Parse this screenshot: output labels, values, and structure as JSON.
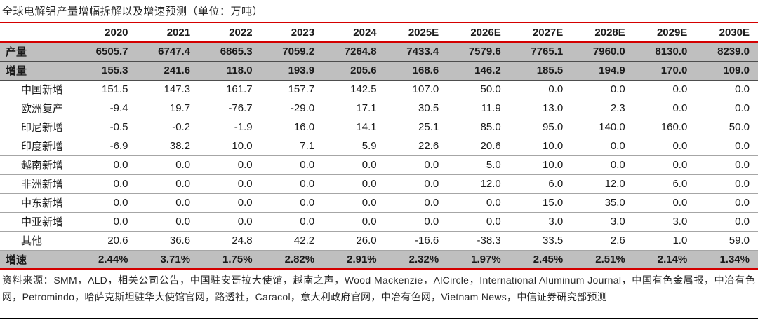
{
  "title": "全球电解铝产量增幅拆解以及增速预测（单位：万吨）",
  "table": {
    "years": [
      "2020",
      "2021",
      "2022",
      "2023",
      "2024",
      "2025E",
      "2026E",
      "2027E",
      "2028E",
      "2029E",
      "2030E"
    ],
    "rows": [
      {
        "label": "产量",
        "emphasis": true,
        "values": [
          "6505.7",
          "6747.4",
          "6865.3",
          "7059.2",
          "7264.8",
          "7433.4",
          "7579.6",
          "7765.1",
          "7960.0",
          "8130.0",
          "8239.0"
        ]
      },
      {
        "label": "增量",
        "emphasis": true,
        "values": [
          "155.3",
          "241.6",
          "118.0",
          "193.9",
          "205.6",
          "168.6",
          "146.2",
          "185.5",
          "194.9",
          "170.0",
          "109.0"
        ]
      },
      {
        "label": "中国新增",
        "emphasis": false,
        "values": [
          "151.5",
          "147.3",
          "161.7",
          "157.7",
          "142.5",
          "107.0",
          "50.0",
          "0.0",
          "0.0",
          "0.0",
          "0.0"
        ]
      },
      {
        "label": "欧洲复产",
        "emphasis": false,
        "values": [
          "-9.4",
          "19.7",
          "-76.7",
          "-29.0",
          "17.1",
          "30.5",
          "11.9",
          "13.0",
          "2.3",
          "0.0",
          "0.0"
        ]
      },
      {
        "label": "印尼新增",
        "emphasis": false,
        "values": [
          "-0.5",
          "-0.2",
          "-1.9",
          "16.0",
          "14.1",
          "25.1",
          "85.0",
          "95.0",
          "140.0",
          "160.0",
          "50.0"
        ]
      },
      {
        "label": "印度新增",
        "emphasis": false,
        "values": [
          "-6.9",
          "38.2",
          "10.0",
          "7.1",
          "5.9",
          "22.6",
          "20.6",
          "10.0",
          "0.0",
          "0.0",
          "0.0"
        ]
      },
      {
        "label": "越南新增",
        "emphasis": false,
        "values": [
          "0.0",
          "0.0",
          "0.0",
          "0.0",
          "0.0",
          "0.0",
          "5.0",
          "10.0",
          "0.0",
          "0.0",
          "0.0"
        ]
      },
      {
        "label": "非洲新增",
        "emphasis": false,
        "values": [
          "0.0",
          "0.0",
          "0.0",
          "0.0",
          "0.0",
          "0.0",
          "12.0",
          "6.0",
          "12.0",
          "6.0",
          "0.0"
        ]
      },
      {
        "label": "中东新增",
        "emphasis": false,
        "values": [
          "0.0",
          "0.0",
          "0.0",
          "0.0",
          "0.0",
          "0.0",
          "0.0",
          "15.0",
          "35.0",
          "0.0",
          "0.0"
        ]
      },
      {
        "label": "中亚新增",
        "emphasis": false,
        "values": [
          "0.0",
          "0.0",
          "0.0",
          "0.0",
          "0.0",
          "0.0",
          "0.0",
          "3.0",
          "3.0",
          "3.0",
          "0.0"
        ]
      },
      {
        "label": "其他",
        "emphasis": false,
        "values": [
          "20.6",
          "36.6",
          "24.8",
          "42.2",
          "26.0",
          "-16.6",
          "-38.3",
          "33.5",
          "2.6",
          "1.0",
          "59.0"
        ]
      },
      {
        "label": "增速",
        "emphasis": true,
        "values": [
          "2.44%",
          "3.71%",
          "1.75%",
          "2.82%",
          "2.91%",
          "2.32%",
          "1.97%",
          "2.45%",
          "2.51%",
          "2.14%",
          "1.34%"
        ]
      }
    ]
  },
  "footer": {
    "source_text": "资料来源：SMM，ALD，相关公司公告，中国驻安哥拉大使馆，越南之声，Wood Mackenzie，AlCircle，International Aluminum Journal，中国有色金属报，中冶有色网，Petromindo，哈萨克斯坦驻华大使馆官网，路透社，Caracol，意大利政府官网，中冶有色网，Vietnam News，中信证券研究部预测"
  },
  "colors": {
    "accent_red": "#d40000",
    "band_gray": "#bfbfbf",
    "rule_dark": "#4d4d4d",
    "rule_light": "#a6a6a6"
  },
  "chart_data": {
    "type": "table",
    "title": "全球电解铝产量增幅拆解以及增速预测（单位：万吨）",
    "categories": [
      "2020",
      "2021",
      "2022",
      "2023",
      "2024",
      "2025E",
      "2026E",
      "2027E",
      "2028E",
      "2029E",
      "2030E"
    ],
    "series": [
      {
        "name": "产量",
        "values": [
          6505.7,
          6747.4,
          6865.3,
          7059.2,
          7264.8,
          7433.4,
          7579.6,
          7765.1,
          7960.0,
          8130.0,
          8239.0
        ]
      },
      {
        "name": "增量",
        "values": [
          155.3,
          241.6,
          118.0,
          193.9,
          205.6,
          168.6,
          146.2,
          185.5,
          194.9,
          170.0,
          109.0
        ]
      },
      {
        "name": "中国新增",
        "values": [
          151.5,
          147.3,
          161.7,
          157.7,
          142.5,
          107.0,
          50.0,
          0.0,
          0.0,
          0.0,
          0.0
        ]
      },
      {
        "name": "欧洲复产",
        "values": [
          -9.4,
          19.7,
          -76.7,
          -29.0,
          17.1,
          30.5,
          11.9,
          13.0,
          2.3,
          0.0,
          0.0
        ]
      },
      {
        "name": "印尼新增",
        "values": [
          -0.5,
          -0.2,
          -1.9,
          16.0,
          14.1,
          25.1,
          85.0,
          95.0,
          140.0,
          160.0,
          50.0
        ]
      },
      {
        "name": "印度新增",
        "values": [
          -6.9,
          38.2,
          10.0,
          7.1,
          5.9,
          22.6,
          20.6,
          10.0,
          0.0,
          0.0,
          0.0
        ]
      },
      {
        "name": "越南新增",
        "values": [
          0.0,
          0.0,
          0.0,
          0.0,
          0.0,
          0.0,
          5.0,
          10.0,
          0.0,
          0.0,
          0.0
        ]
      },
      {
        "name": "非洲新增",
        "values": [
          0.0,
          0.0,
          0.0,
          0.0,
          0.0,
          0.0,
          12.0,
          6.0,
          12.0,
          6.0,
          0.0
        ]
      },
      {
        "name": "中东新增",
        "values": [
          0.0,
          0.0,
          0.0,
          0.0,
          0.0,
          0.0,
          0.0,
          15.0,
          35.0,
          0.0,
          0.0
        ]
      },
      {
        "name": "中亚新增",
        "values": [
          0.0,
          0.0,
          0.0,
          0.0,
          0.0,
          0.0,
          0.0,
          3.0,
          3.0,
          3.0,
          0.0
        ]
      },
      {
        "name": "其他",
        "values": [
          20.6,
          36.6,
          24.8,
          42.2,
          26.0,
          -16.6,
          -38.3,
          33.5,
          2.6,
          1.0,
          59.0
        ]
      },
      {
        "name": "增速",
        "values": [
          "2.44%",
          "3.71%",
          "1.75%",
          "2.82%",
          "2.91%",
          "2.32%",
          "1.97%",
          "2.45%",
          "2.51%",
          "2.14%",
          "1.34%"
        ]
      }
    ],
    "unit": "万吨"
  }
}
